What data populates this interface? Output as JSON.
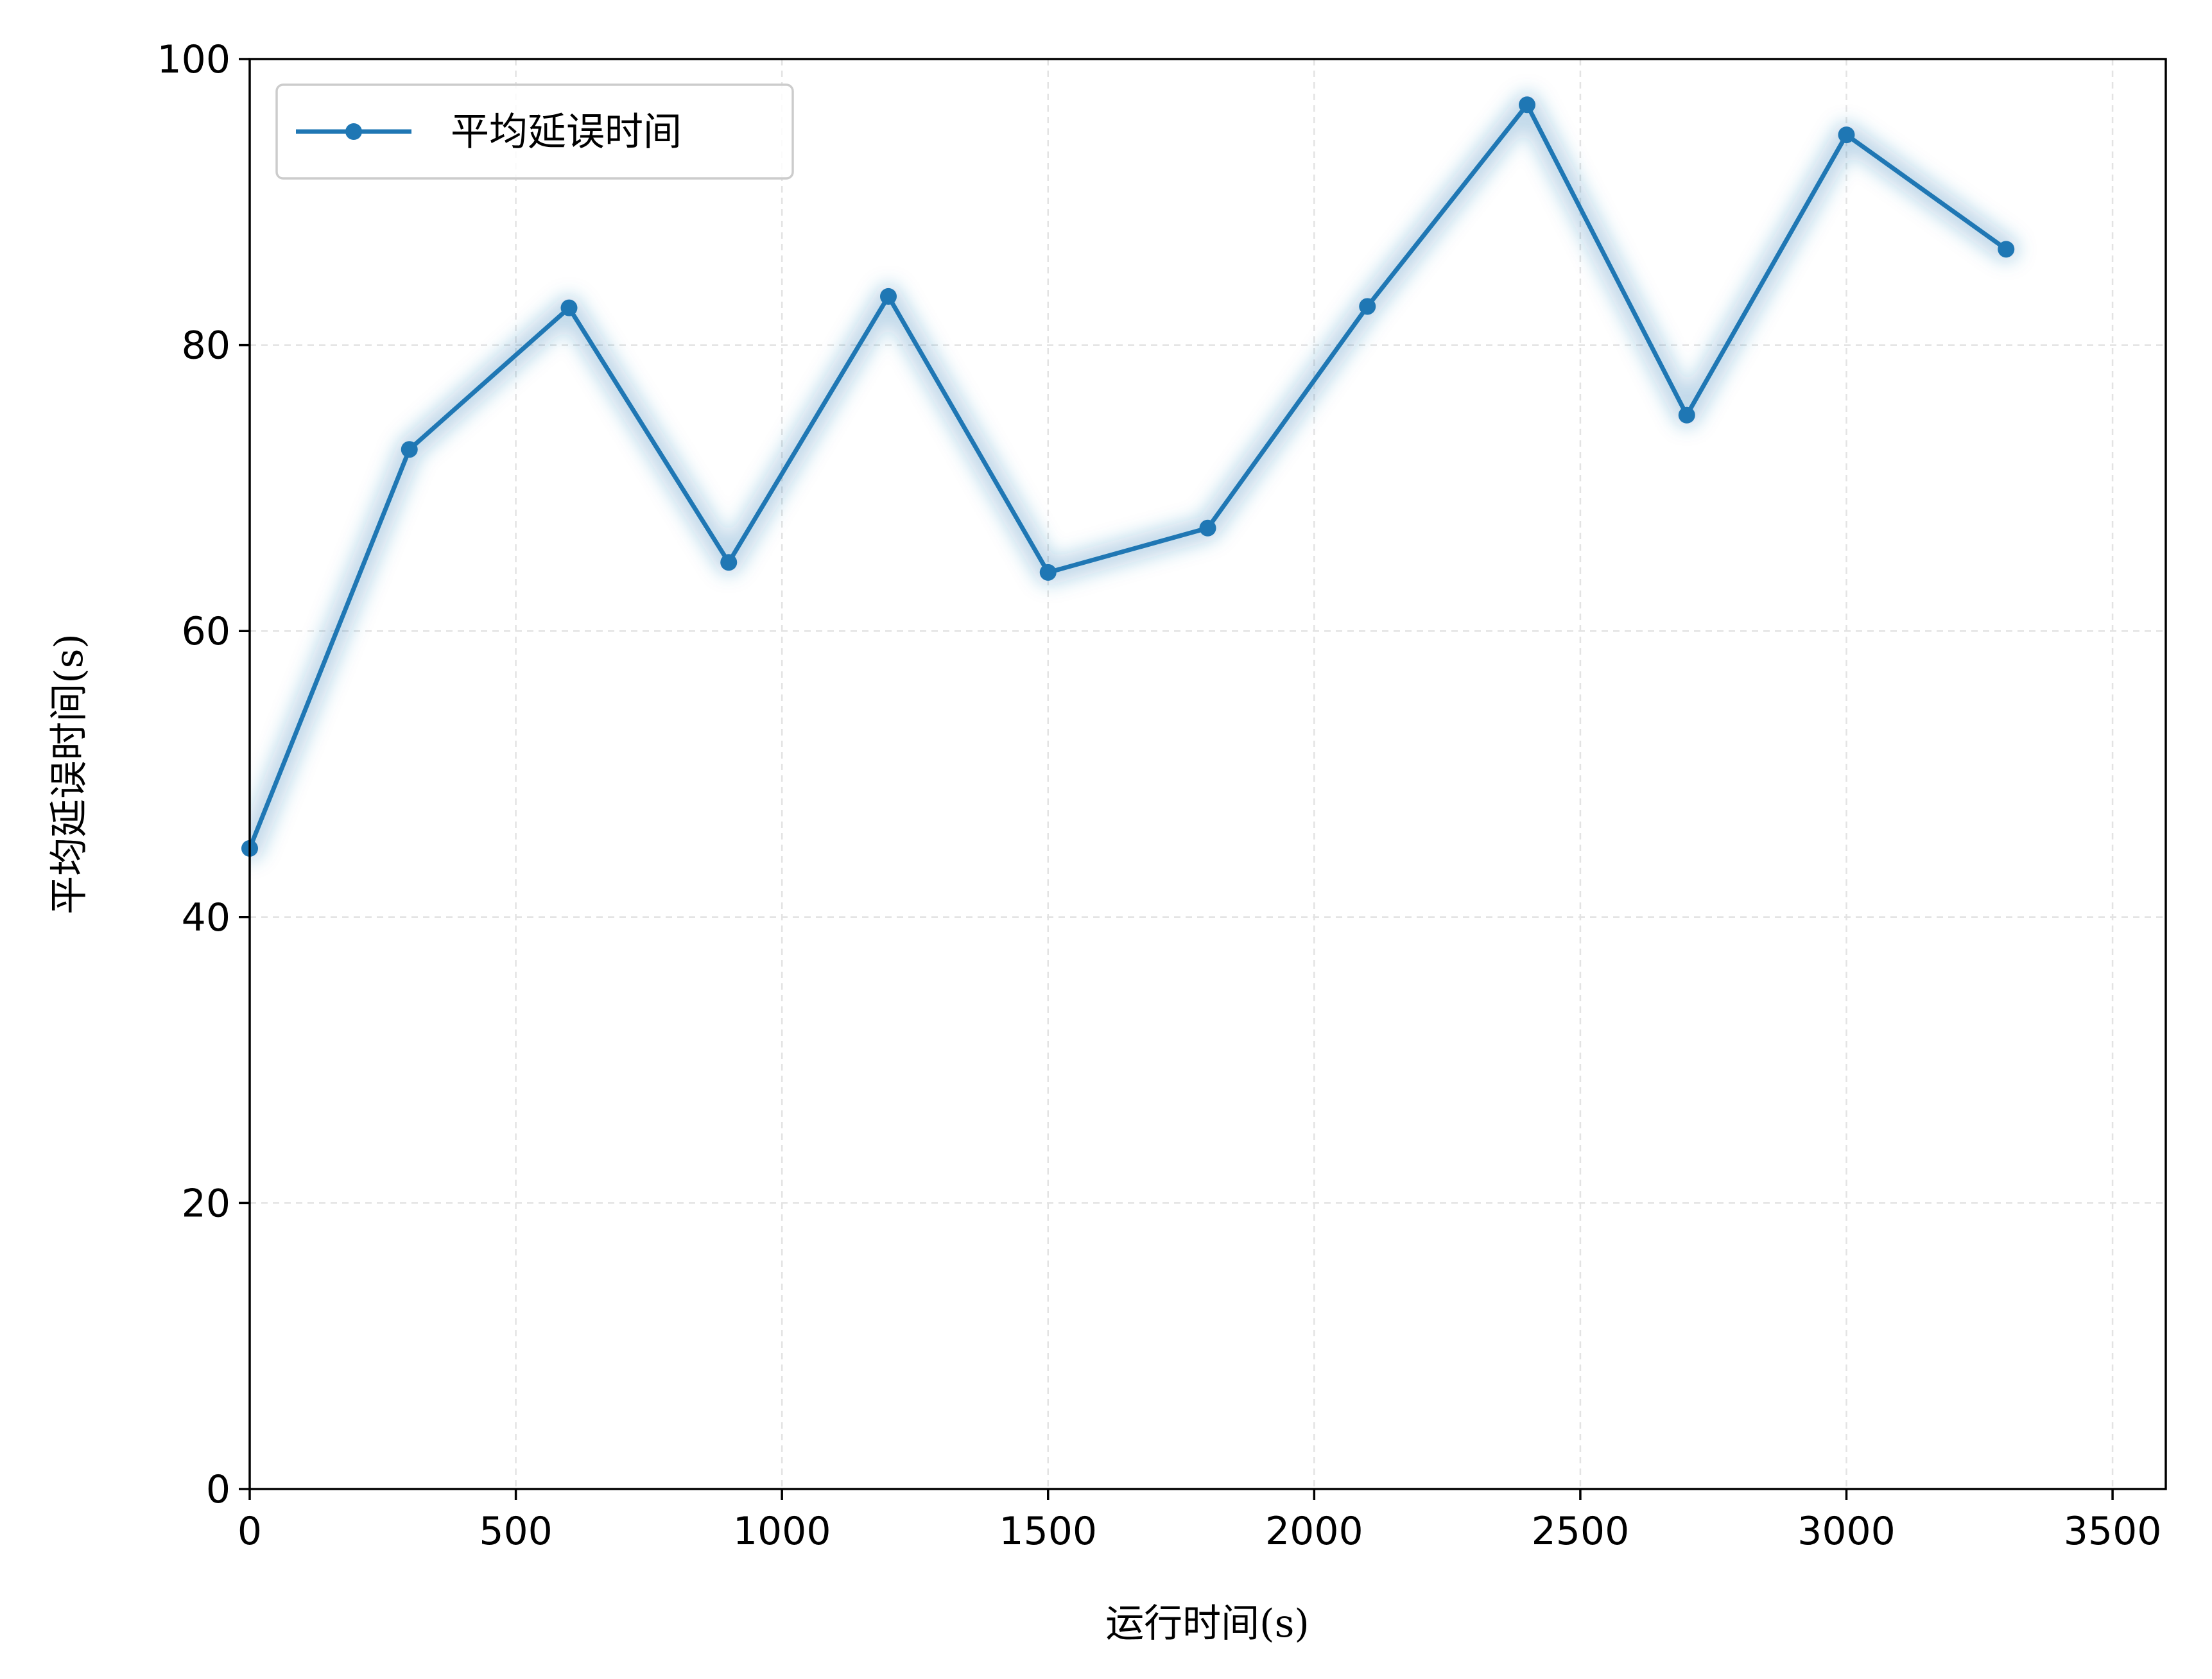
{
  "chart_data": {
    "type": "line",
    "title": "",
    "xlabel": "运行时间(s)",
    "ylabel": "平均延误时间(s)",
    "xlim": [
      0,
      3600
    ],
    "ylim": [
      0,
      100
    ],
    "xticks": [
      0,
      500,
      1000,
      1500,
      2000,
      2500,
      3000,
      3500
    ],
    "yticks": [
      0,
      20,
      40,
      60,
      80,
      100
    ],
    "grid": true,
    "legend_position": "top-left",
    "series": [
      {
        "name": "平均延误时间",
        "color": "#1f77b4",
        "marker": "circle",
        "x": [
          0,
          300,
          600,
          900,
          1200,
          1500,
          1800,
          2100,
          2400,
          2700,
          3000,
          3300
        ],
        "y": [
          44.8,
          72.7,
          82.6,
          64.8,
          83.4,
          64.1,
          67.2,
          82.7,
          96.8,
          75.1,
          94.7,
          86.7
        ]
      }
    ]
  }
}
